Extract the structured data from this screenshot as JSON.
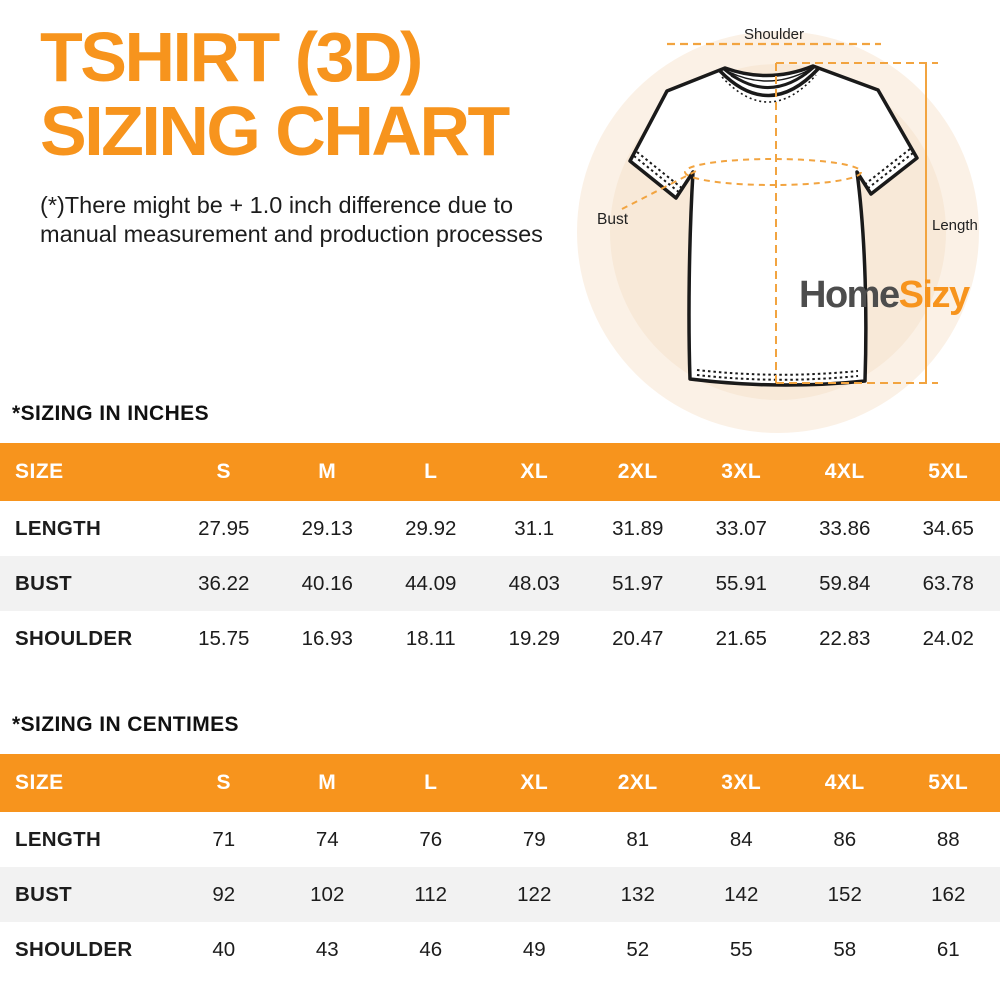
{
  "header": {
    "title_line1": "TSHIRT (3D)",
    "title_line2": "SIZING CHART",
    "disclaimer_line1": "(*)There might be + 1.0 inch difference due to",
    "disclaimer_line2": "manual measurement and production processes"
  },
  "diagram": {
    "shoulder_label": "Shoulder",
    "bust_label": "Bust",
    "length_label": "Length",
    "logo_part1": "Home",
    "logo_part2": "Sizy"
  },
  "colors": {
    "accent_orange": "#F7941D",
    "measure_line_orange": "#F2A440",
    "table_header_bg": "#F7941D",
    "table_header_text": "#FFFFFF",
    "table_alt_row_bg": "#F2F2F2",
    "text_dark": "#1C1C1C",
    "logo_gray": "#4D4D4D",
    "logo_orange": "#F7941D",
    "circle_outer": "#FBF1E6",
    "circle_inner": "#F8E9D8",
    "shirt_outline": "#1A1A1A"
  },
  "chart_data": [
    {
      "type": "table",
      "title": "*SIZING IN INCHES",
      "columns": [
        "SIZE",
        "S",
        "M",
        "L",
        "XL",
        "2XL",
        "3XL",
        "4XL",
        "5XL"
      ],
      "rows": [
        {
          "label": "LENGTH",
          "values": [
            "27.95",
            "29.13",
            "29.92",
            "31.1",
            "31.89",
            "33.07",
            "33.86",
            "34.65"
          ]
        },
        {
          "label": "BUST",
          "values": [
            "36.22",
            "40.16",
            "44.09",
            "48.03",
            "51.97",
            "55.91",
            "59.84",
            "63.78"
          ]
        },
        {
          "label": "SHOULDER",
          "values": [
            "15.75",
            "16.93",
            "18.11",
            "19.29",
            "20.47",
            "21.65",
            "22.83",
            "24.02"
          ]
        }
      ]
    },
    {
      "type": "table",
      "title": "*SIZING IN CENTIMES",
      "columns": [
        "SIZE",
        "S",
        "M",
        "L",
        "XL",
        "2XL",
        "3XL",
        "4XL",
        "5XL"
      ],
      "rows": [
        {
          "label": "LENGTH",
          "values": [
            "71",
            "74",
            "76",
            "79",
            "81",
            "84",
            "86",
            "88"
          ]
        },
        {
          "label": "BUST",
          "values": [
            "92",
            "102",
            "112",
            "122",
            "132",
            "142",
            "152",
            "162"
          ]
        },
        {
          "label": "SHOULDER",
          "values": [
            "40",
            "43",
            "46",
            "49",
            "52",
            "55",
            "58",
            "61"
          ]
        }
      ]
    }
  ]
}
